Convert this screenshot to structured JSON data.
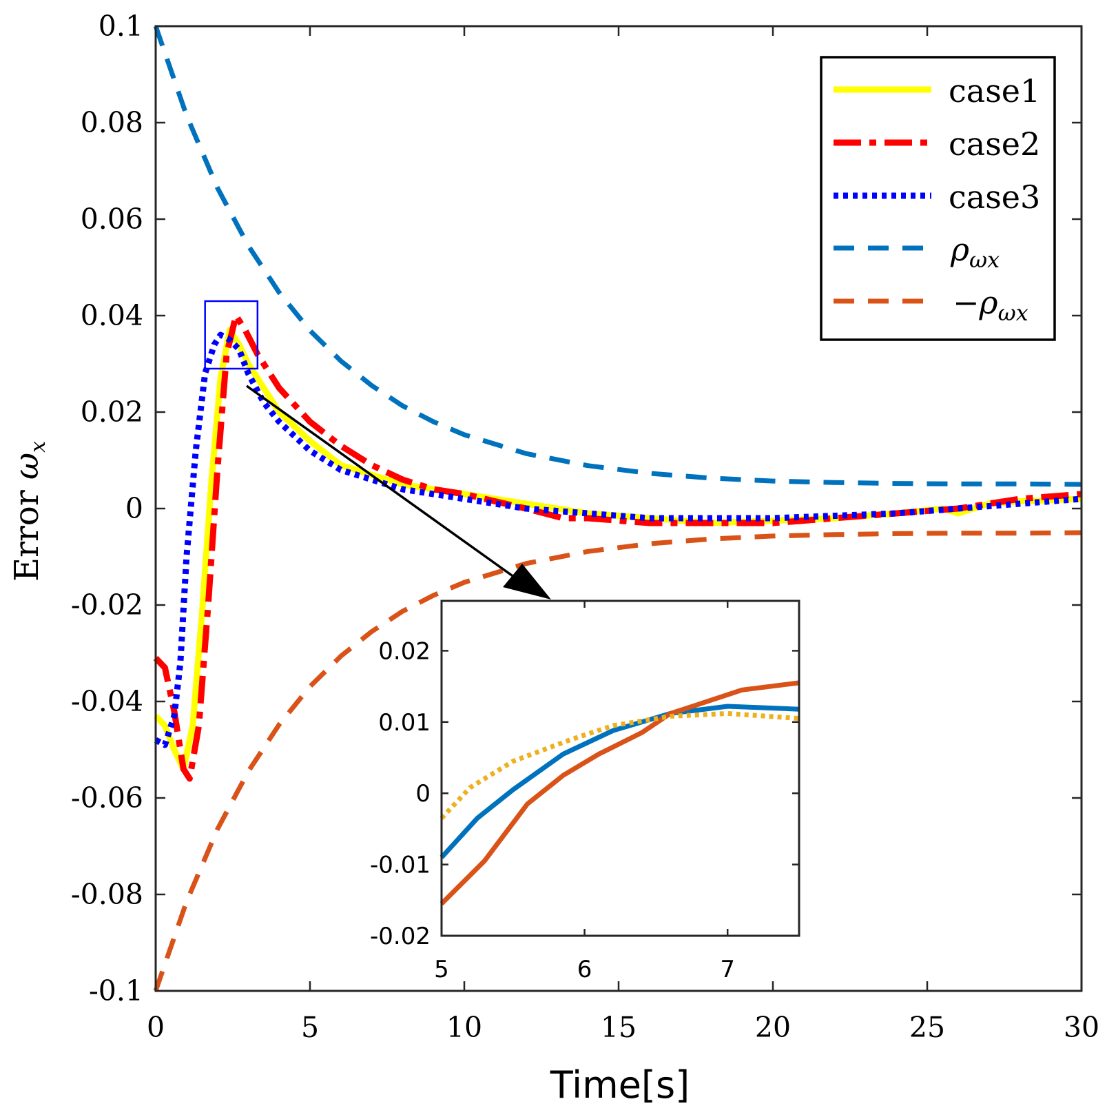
{
  "chart_data": {
    "type": "line",
    "xlabel": "Time[s]",
    "ylabel_main": "Error ",
    "ylabel_symbol": "ω",
    "ylabel_sub": "x",
    "xlim": [
      0,
      30
    ],
    "ylim": [
      -0.1,
      0.1
    ],
    "xticks": [
      0,
      5,
      10,
      15,
      20,
      25,
      30
    ],
    "xtick_labels": [
      "0",
      "5",
      "10",
      "15",
      "20",
      "25",
      "30"
    ],
    "yticks": [
      -0.1,
      -0.08,
      -0.06,
      -0.04,
      -0.02,
      0,
      0.02,
      0.04,
      0.06,
      0.08,
      0.1
    ],
    "ytick_labels": [
      "-0.1",
      "-0.08",
      "-0.06",
      "-0.04",
      "-0.02",
      "0",
      "0.02",
      "0.04",
      "0.06",
      "0.08",
      "0.1"
    ],
    "legend_position": "top-right",
    "series": [
      {
        "name": "case1",
        "color": "#ffff00",
        "style": "solid",
        "x": [
          0,
          0.3,
          0.6,
          0.9,
          1.2,
          1.5,
          1.8,
          2.1,
          2.4,
          2.7,
          3.0,
          3.5,
          4,
          5,
          6,
          7,
          8,
          9,
          10,
          12,
          14,
          16,
          18,
          20,
          22,
          24,
          25.5,
          26,
          27,
          28,
          30
        ],
        "y": [
          -0.043,
          -0.045,
          -0.05,
          -0.054,
          -0.045,
          -0.022,
          0.005,
          0.027,
          0.037,
          0.034,
          0.03,
          0.025,
          0.02,
          0.014,
          0.009,
          0.007,
          0.005,
          0.004,
          0.003,
          0.001,
          -0.001,
          -0.002,
          -0.003,
          -0.0025,
          -0.002,
          -0.001,
          0.0,
          -0.001,
          0.001,
          0.0015,
          0.002
        ]
      },
      {
        "name": "case2",
        "color": "#ff0000",
        "style": "dashdot",
        "x": [
          0,
          0.3,
          0.6,
          0.9,
          1.1,
          1.4,
          1.7,
          2.0,
          2.3,
          2.6,
          2.9,
          3.3,
          4,
          5,
          6,
          7,
          8,
          9,
          10,
          12,
          13.2,
          14,
          16,
          18,
          20,
          22,
          24,
          26,
          28,
          30
        ],
        "y": [
          -0.031,
          -0.033,
          -0.042,
          -0.054,
          -0.056,
          -0.045,
          -0.02,
          0.008,
          0.032,
          0.04,
          0.037,
          0.032,
          0.025,
          0.018,
          0.013,
          0.009,
          0.006,
          0.004,
          0.003,
          0.0,
          -0.002,
          -0.002,
          -0.003,
          -0.003,
          -0.003,
          -0.002,
          -0.001,
          0.0,
          0.002,
          0.003
        ]
      },
      {
        "name": "case3",
        "color": "#0000ff",
        "style": "dotted",
        "x": [
          0,
          0.3,
          0.6,
          0.8,
          1.0,
          1.3,
          1.6,
          1.9,
          2.1,
          2.4,
          2.7,
          3.0,
          3.5,
          4,
          5,
          6,
          7,
          8,
          9,
          10,
          12,
          14,
          16,
          18,
          20,
          22,
          24,
          26,
          28,
          30
        ],
        "y": [
          -0.048,
          -0.049,
          -0.043,
          -0.032,
          -0.01,
          0.012,
          0.028,
          0.034,
          0.036,
          0.035,
          0.033,
          0.028,
          0.022,
          0.018,
          0.012,
          0.008,
          0.006,
          0.004,
          0.003,
          0.002,
          0.0,
          -0.001,
          -0.002,
          -0.002,
          -0.002,
          -0.0015,
          -0.001,
          0.0,
          0.001,
          0.002
        ]
      },
      {
        "name": "ρωx",
        "color": "#0072bd",
        "style": "dashed",
        "x": [
          0,
          1,
          2,
          3,
          4,
          5,
          6,
          7,
          8,
          9,
          10,
          12,
          14,
          16,
          18,
          20,
          22,
          24,
          26,
          28,
          30
        ],
        "y": [
          0.1,
          0.0815,
          0.0665,
          0.0545,
          0.0448,
          0.0369,
          0.0306,
          0.0255,
          0.0213,
          0.018,
          0.0153,
          0.0114,
          0.0089,
          0.0073,
          0.0063,
          0.0057,
          0.0054,
          0.0052,
          0.0051,
          0.0051,
          0.005
        ]
      },
      {
        "name": "−ρωx",
        "color": "#d95319",
        "style": "dashed",
        "x": [
          0,
          1,
          2,
          3,
          4,
          5,
          6,
          7,
          8,
          9,
          10,
          12,
          14,
          16,
          18,
          20,
          22,
          24,
          26,
          28,
          30
        ],
        "y": [
          -0.1,
          -0.0815,
          -0.0665,
          -0.0545,
          -0.0448,
          -0.0369,
          -0.0306,
          -0.0255,
          -0.0213,
          -0.018,
          -0.0153,
          -0.0114,
          -0.0089,
          -0.0073,
          -0.0063,
          -0.0057,
          -0.0054,
          -0.0052,
          -0.0051,
          -0.0051,
          -0.005
        ]
      }
    ],
    "legend": [
      {
        "label": "case1",
        "series_index": 0
      },
      {
        "label": "case2",
        "series_index": 1
      },
      {
        "label": "case3",
        "series_index": 2
      },
      {
        "label": "ρωx",
        "series_index": 3,
        "symbol": "ρ",
        "sub": "ωx",
        "prefix": ""
      },
      {
        "label": "−ρωx",
        "series_index": 4,
        "symbol": "ρ",
        "sub": "ωx",
        "prefix": "−"
      }
    ],
    "highlight_box": {
      "x_range": [
        1.6,
        3.3
      ],
      "y_range": [
        0.029,
        0.043
      ],
      "color": "#0000ff"
    },
    "inset": {
      "xlim": [
        5,
        7.5
      ],
      "ylim": [
        -0.02,
        0.027
      ],
      "xticks": [
        5,
        6,
        7
      ],
      "xtick_labels": [
        "5",
        "6",
        "7"
      ],
      "yticks": [
        -0.02,
        -0.01,
        0,
        0.01,
        0.02
      ],
      "ytick_labels": [
        "-0.02",
        "-0.01",
        "0",
        "0.01",
        "0.02"
      ],
      "series": [
        {
          "color": "#0072bd",
          "style": "solid",
          "x": [
            5.0,
            5.25,
            5.5,
            5.85,
            6.2,
            6.6,
            7.0,
            7.5
          ],
          "y": [
            -0.009,
            -0.0035,
            0.0005,
            0.0055,
            0.0088,
            0.0112,
            0.0122,
            0.0118
          ]
        },
        {
          "color": "#d95319",
          "style": "solid",
          "x": [
            5.0,
            5.3,
            5.6,
            5.85,
            6.1,
            6.4,
            6.6,
            6.8,
            7.1,
            7.5
          ],
          "y": [
            -0.0155,
            -0.0095,
            -0.0015,
            0.0025,
            0.0055,
            0.0085,
            0.0112,
            0.0125,
            0.0145,
            0.0155
          ]
        },
        {
          "color": "#edb120",
          "style": "dotted",
          "x": [
            5.0,
            5.2,
            5.5,
            5.9,
            6.2,
            6.6,
            7.0,
            7.5
          ],
          "y": [
            -0.0035,
            0.0008,
            0.0045,
            0.0075,
            0.0095,
            0.0108,
            0.0112,
            0.0105
          ]
        }
      ]
    }
  }
}
